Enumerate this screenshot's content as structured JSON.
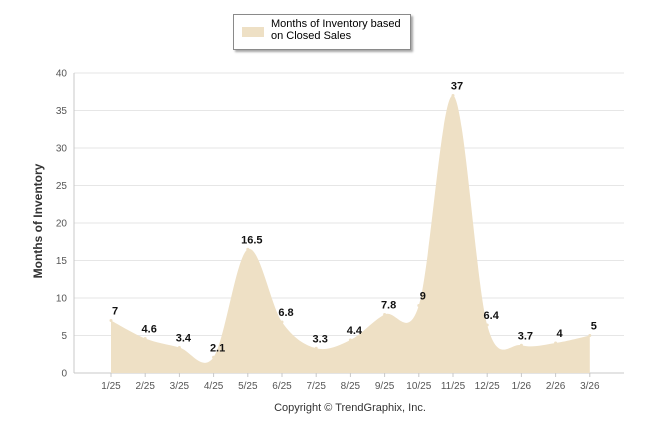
{
  "chart_data": {
    "type": "area",
    "categories": [
      "1/25",
      "2/25",
      "3/25",
      "4/25",
      "5/25",
      "6/25",
      "7/25",
      "8/25",
      "9/25",
      "10/25",
      "11/25",
      "12/25",
      "1/26",
      "2/26",
      "3/26"
    ],
    "series": [
      {
        "name": "Months of Inventory based on Closed Sales",
        "values": [
          7,
          4.6,
          3.4,
          2.1,
          16.5,
          6.8,
          3.3,
          4.4,
          7.8,
          9,
          37,
          6.4,
          3.7,
          4,
          5
        ],
        "labels": [
          "7",
          "4.6",
          "3.4",
          "2.1",
          "16.5",
          "6.8",
          "3.3",
          "4.4",
          "7.8",
          "9",
          "37",
          "6.4",
          "3.7",
          "4",
          "5"
        ],
        "color": "#eee0c5"
      }
    ],
    "xlabel": "",
    "ylabel": "Months of Inventory",
    "ylim": [
      0,
      40
    ],
    "yticks": [
      0,
      5,
      10,
      15,
      20,
      25,
      30,
      35,
      40
    ],
    "ytick_labels": [
      "0",
      "5",
      "10",
      "15",
      "20",
      "25",
      "30",
      "35",
      "40"
    ],
    "grid": true,
    "legend_position": "top-center"
  },
  "legend": {
    "label": "Months of Inventory based on Closed Sales",
    "swatch_color": "#eee0c5"
  },
  "footer": {
    "copyright": "Copyright © TrendGraphix, Inc."
  }
}
